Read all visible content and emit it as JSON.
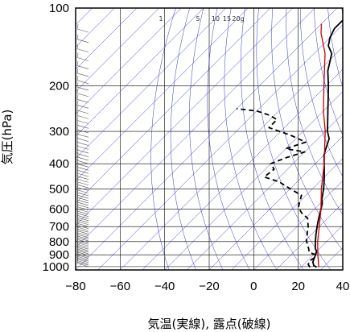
{
  "chart_data": {
    "type": "line",
    "subtype": "skew-T log-p thermodynamic diagram",
    "xlabel": "気温(実線), 露点(破線)",
    "ylabel": "気圧(hPa)",
    "xlim": [
      -80,
      40
    ],
    "ylim": [
      1030,
      100
    ],
    "y_scale": "log",
    "x_ticks": [
      -80,
      -60,
      -40,
      -20,
      0,
      20,
      40
    ],
    "x_tick_labels": [
      "−80",
      "−60",
      "−40",
      "−20",
      "0",
      "20",
      "40"
    ],
    "y_ticks": [
      100,
      200,
      300,
      400,
      500,
      600,
      700,
      800,
      900,
      1000
    ],
    "y_tick_labels": [
      "100",
      "200",
      "300",
      "400",
      "500",
      "600",
      "700",
      "800",
      "900",
      "1000"
    ],
    "mixing_ratio_labels": [
      "1",
      "5",
      "10",
      "15",
      "20g"
    ],
    "grid": true,
    "colors": {
      "temperature": "#000000",
      "dewpoint": "#000000",
      "reference_curve": "#cc0000",
      "adiabats": "#3333cc",
      "grid": "#000000"
    },
    "series": [
      {
        "name": "気温",
        "style": "solid",
        "points": [
          {
            "p": 1005,
            "t": 27
          },
          {
            "p": 990,
            "t": 25
          },
          {
            "p": 960,
            "t": 23
          },
          {
            "p": 930,
            "t": 22
          },
          {
            "p": 900,
            "t": 21
          },
          {
            "p": 875,
            "t": 20
          },
          {
            "p": 850,
            "t": 18
          },
          {
            "p": 800,
            "t": 15
          },
          {
            "p": 750,
            "t": 12
          },
          {
            "p": 700,
            "t": 9
          },
          {
            "p": 650,
            "t": 6
          },
          {
            "p": 600,
            "t": 3
          },
          {
            "p": 570,
            "t": 1
          },
          {
            "p": 550,
            "t": -1
          },
          {
            "p": 500,
            "t": -5
          },
          {
            "p": 450,
            "t": -10
          },
          {
            "p": 400,
            "t": -16
          },
          {
            "p": 370,
            "t": -20
          },
          {
            "p": 350,
            "t": -22
          },
          {
            "p": 320,
            "t": -25
          },
          {
            "p": 300,
            "t": -29
          },
          {
            "p": 250,
            "t": -38
          },
          {
            "p": 200,
            "t": -49
          },
          {
            "p": 175,
            "t": -56
          },
          {
            "p": 150,
            "t": -62
          },
          {
            "p": 140,
            "t": -67
          },
          {
            "p": 130,
            "t": -70
          },
          {
            "p": 120,
            "t": -72
          },
          {
            "p": 110,
            "t": -72
          },
          {
            "p": 100,
            "t": -72
          }
        ]
      },
      {
        "name": "露点",
        "style": "dashed",
        "points": [
          {
            "p": 1005,
            "t": 24
          },
          {
            "p": 980,
            "t": 22
          },
          {
            "p": 950,
            "t": 21
          },
          {
            "p": 920,
            "t": 22
          },
          {
            "p": 900,
            "t": 21
          },
          {
            "p": 880,
            "t": 17
          },
          {
            "p": 850,
            "t": 15
          },
          {
            "p": 800,
            "t": 11
          },
          {
            "p": 750,
            "t": 8
          },
          {
            "p": 700,
            "t": 5
          },
          {
            "p": 650,
            "t": 1
          },
          {
            "p": 620,
            "t": -4
          },
          {
            "p": 590,
            "t": -8
          },
          {
            "p": 560,
            "t": -10
          },
          {
            "p": 530,
            "t": -12
          },
          {
            "p": 500,
            "t": -20
          },
          {
            "p": 470,
            "t": -28
          },
          {
            "p": 450,
            "t": -37
          },
          {
            "p": 420,
            "t": -36
          },
          {
            "p": 400,
            "t": -40
          },
          {
            "p": 380,
            "t": -36
          },
          {
            "p": 360,
            "t": -30
          },
          {
            "p": 350,
            "t": -40
          },
          {
            "p": 330,
            "t": -34
          },
          {
            "p": 310,
            "t": -44
          },
          {
            "p": 290,
            "t": -57
          },
          {
            "p": 270,
            "t": -57
          },
          {
            "p": 260,
            "t": -62
          },
          {
            "p": 250,
            "t": -70
          },
          {
            "p": 245,
            "t": -80
          }
        ]
      },
      {
        "name": "",
        "style": "solid-red",
        "points": [
          {
            "p": 1005,
            "t": 28
          },
          {
            "p": 900,
            "t": 22
          },
          {
            "p": 800,
            "t": 16
          },
          {
            "p": 700,
            "t": 10
          },
          {
            "p": 600,
            "t": 3
          },
          {
            "p": 500,
            "t": -6
          },
          {
            "p": 400,
            "t": -16
          },
          {
            "p": 300,
            "t": -30
          },
          {
            "p": 250,
            "t": -40
          },
          {
            "p": 200,
            "t": -51
          },
          {
            "p": 150,
            "t": -65
          },
          {
            "p": 125,
            "t": -76
          },
          {
            "p": 115,
            "t": -80
          }
        ]
      }
    ]
  }
}
